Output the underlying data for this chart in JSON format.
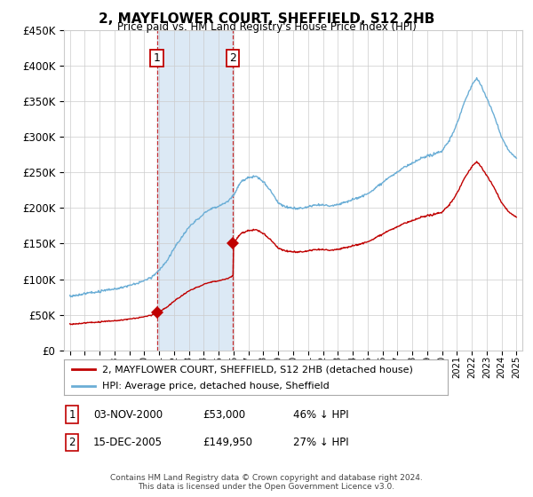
{
  "title": "2, MAYFLOWER COURT, SHEFFIELD, S12 2HB",
  "subtitle": "Price paid vs. HM Land Registry's House Price Index (HPI)",
  "footer": "Contains HM Land Registry data © Crown copyright and database right 2024.\nThis data is licensed under the Open Government Licence v3.0.",
  "legend_line1": "2, MAYFLOWER COURT, SHEFFIELD, S12 2HB (detached house)",
  "legend_line2": "HPI: Average price, detached house, Sheffield",
  "sale1_date": "03-NOV-2000",
  "sale1_price": "£53,000",
  "sale1_hpi": "46% ↓ HPI",
  "sale1_year": 2000.84,
  "sale1_value": 53000,
  "sale2_date": "15-DEC-2005",
  "sale2_price": "£149,950",
  "sale2_hpi": "27% ↓ HPI",
  "sale2_year": 2005.96,
  "sale2_value": 149950,
  "red_color": "#c00000",
  "blue_color": "#6baed6",
  "shading_color": "#dce9f5",
  "grid_color": "#cccccc",
  "bg_color": "#ffffff",
  "ylim": [
    0,
    450000
  ],
  "yticks": [
    0,
    50000,
    100000,
    150000,
    200000,
    250000,
    300000,
    350000,
    400000,
    450000
  ],
  "xlim_start": 1994.6,
  "xlim_end": 2025.4
}
